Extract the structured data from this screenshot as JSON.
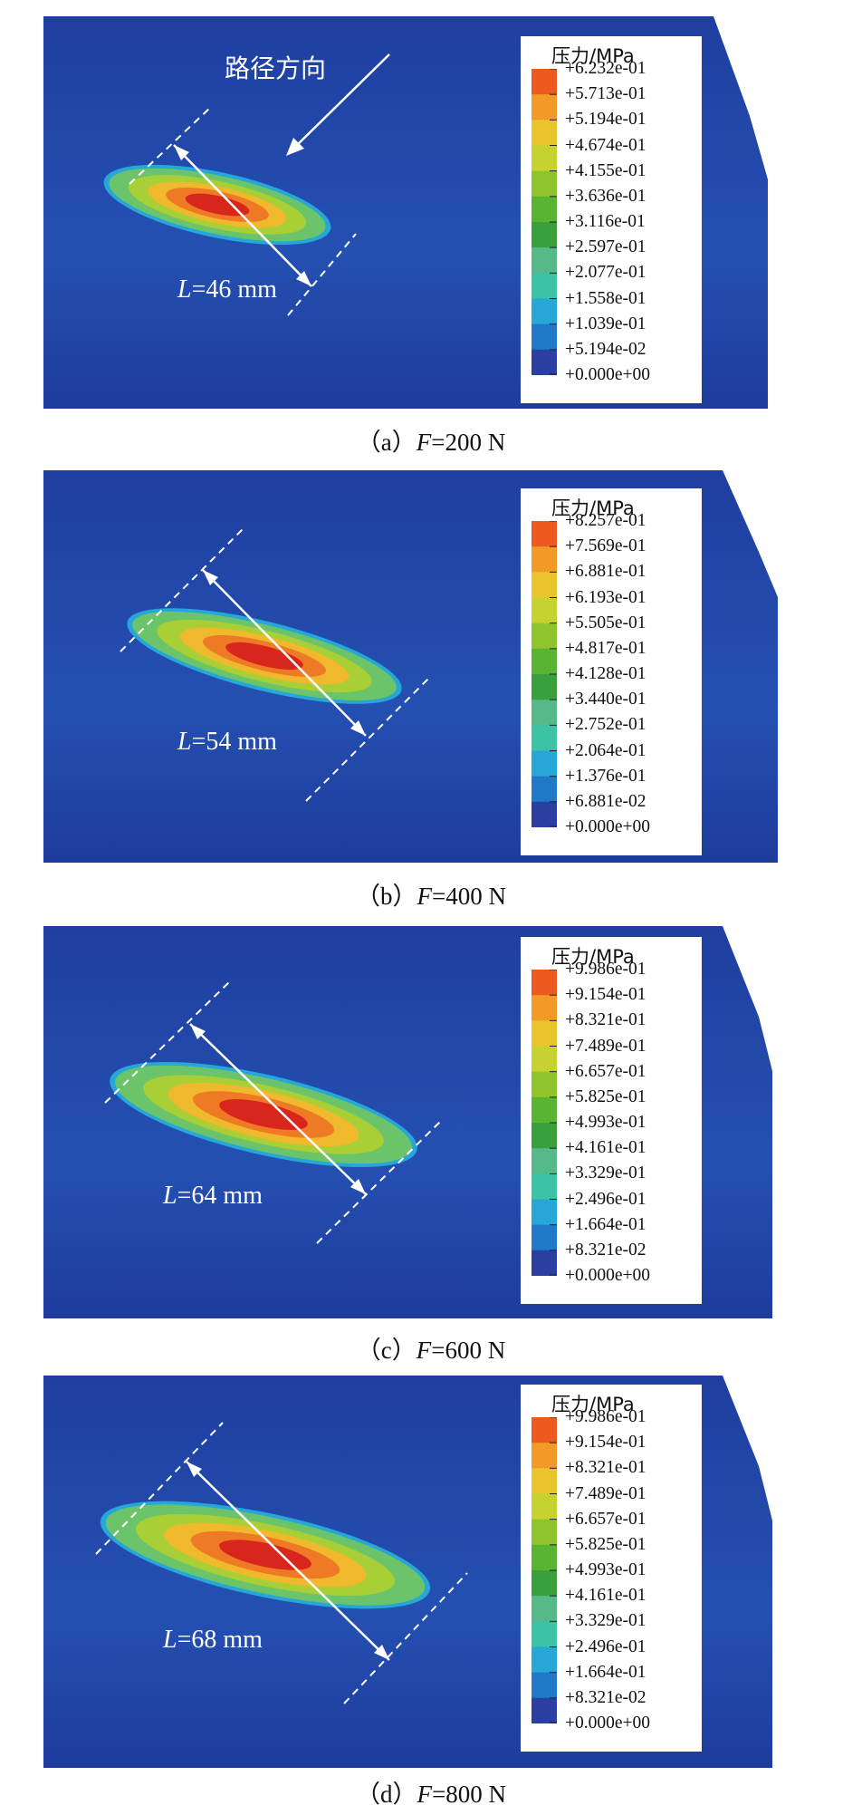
{
  "legend_title": "压力/MPa",
  "direction_label": "路径方向",
  "colors": {
    "background_blue": "#2147a6",
    "contour": [
      "#2a3fa0",
      "#1f78c8",
      "#27a6d8",
      "#3ec2a6",
      "#55b98a",
      "#3a9f3c",
      "#59b431",
      "#8fc42c",
      "#c5d22f",
      "#e9c42c",
      "#f19a27",
      "#ec5a22",
      "#d9261c"
    ]
  },
  "panels": [
    {
      "caption_prefix": "（a）",
      "caption_var": "F",
      "caption_value": "=200 N",
      "length_var": "L",
      "length_value": "=46 mm",
      "legend_values": [
        "+6.232e-01",
        "+5.713e-01",
        "+5.194e-01",
        "+4.674e-01",
        "+4.155e-01",
        "+3.636e-01",
        "+3.116e-01",
        "+2.597e-01",
        "+2.077e-01",
        "+1.558e-01",
        "+1.039e-01",
        "+5.194e-02",
        "+0.000e+00"
      ]
    },
    {
      "caption_prefix": "（b）",
      "caption_var": "F",
      "caption_value": "=400 N",
      "length_var": "L",
      "length_value": "=54 mm",
      "legend_values": [
        "+8.257e-01",
        "+7.569e-01",
        "+6.881e-01",
        "+6.193e-01",
        "+5.505e-01",
        "+4.817e-01",
        "+4.128e-01",
        "+3.440e-01",
        "+2.752e-01",
        "+2.064e-01",
        "+1.376e-01",
        "+6.881e-02",
        "+0.000e+00"
      ]
    },
    {
      "caption_prefix": "（c）",
      "caption_var": "F",
      "caption_value": "=600 N",
      "length_var": "L",
      "length_value": "=64 mm",
      "legend_values": [
        "+9.986e-01",
        "+9.154e-01",
        "+8.321e-01",
        "+7.489e-01",
        "+6.657e-01",
        "+5.825e-01",
        "+4.993e-01",
        "+4.161e-01",
        "+3.329e-01",
        "+2.496e-01",
        "+1.664e-01",
        "+8.321e-02",
        "+0.000e+00"
      ]
    },
    {
      "caption_prefix": "（d）",
      "caption_var": "F",
      "caption_value": "=800 N",
      "length_var": "L",
      "length_value": "=68 mm",
      "legend_values": [
        "+9.986e-01",
        "+9.154e-01",
        "+8.321e-01",
        "+7.489e-01",
        "+6.657e-01",
        "+5.825e-01",
        "+4.993e-01",
        "+4.161e-01",
        "+3.329e-01",
        "+2.496e-01",
        "+1.664e-01",
        "+8.321e-02",
        "+0.000e+00"
      ]
    }
  ]
}
